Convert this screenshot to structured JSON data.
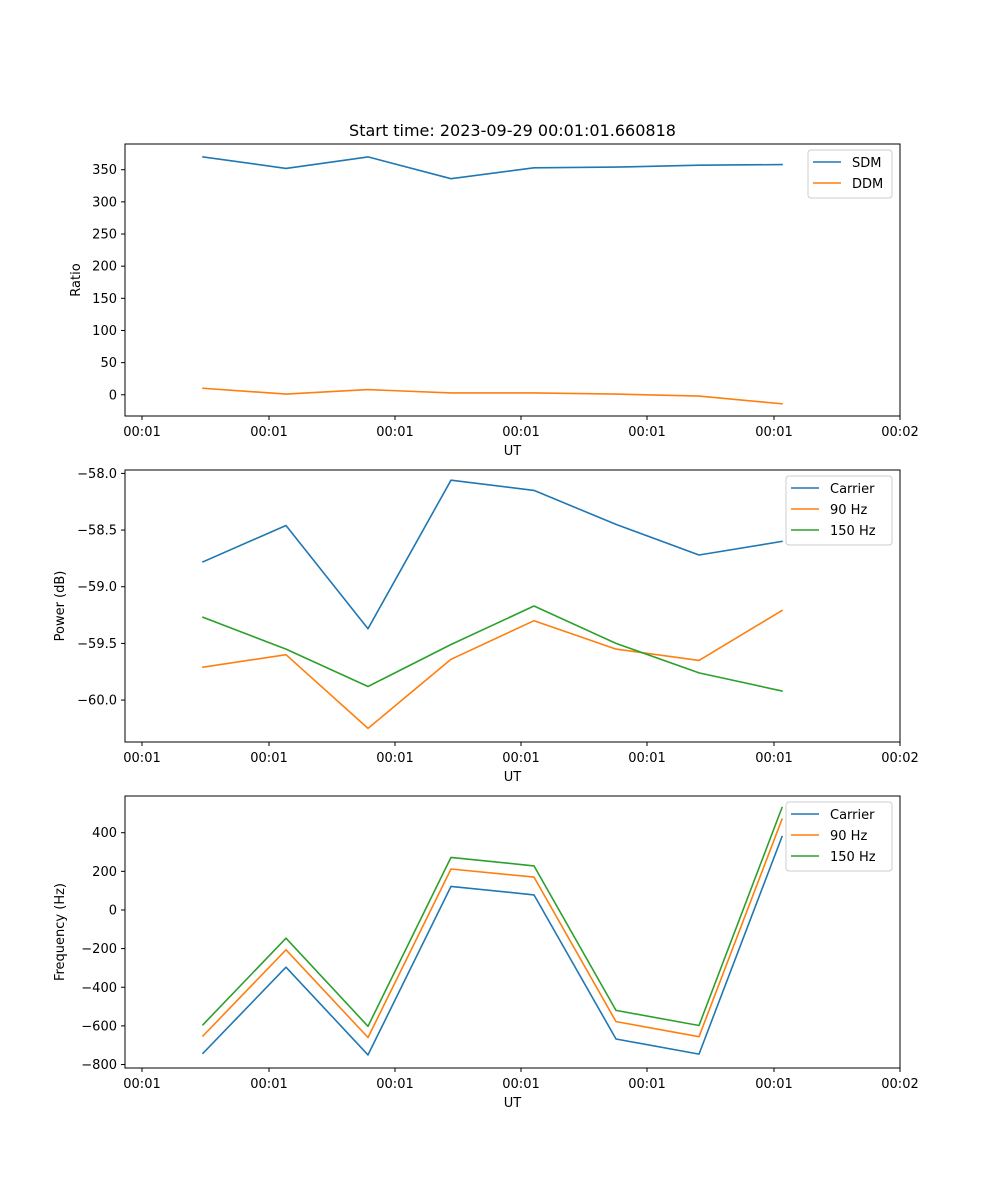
{
  "figure_title": "Start time: 2023-09-29 00:01:01.660818",
  "colors": {
    "blue": "#1f77b4",
    "orange": "#ff7f0e",
    "green": "#2ca02c"
  },
  "chart_data": [
    {
      "type": "line",
      "title": "Start time: 2023-09-29 00:01:01.660818",
      "xlabel": "UT",
      "ylabel": "Ratio",
      "xtick_labels": [
        "00:01",
        "00:01",
        "00:01",
        "00:01",
        "00:01",
        "00:01",
        "00:02"
      ],
      "yticks": [
        0,
        50,
        100,
        150,
        200,
        250,
        300,
        350
      ],
      "ylim": [
        -33,
        390
      ],
      "legend": "top-right",
      "series": [
        {
          "name": "SDM",
          "color": "#1f77b4",
          "values": [
            370,
            352,
            370,
            336,
            353,
            354,
            357,
            358
          ]
        },
        {
          "name": "DDM",
          "color": "#ff7f0e",
          "values": [
            10,
            1,
            8,
            3,
            3,
            1,
            -2,
            -14
          ]
        }
      ]
    },
    {
      "type": "line",
      "xlabel": "UT",
      "ylabel": "Power (dB)",
      "xtick_labels": [
        "00:01",
        "00:01",
        "00:01",
        "00:01",
        "00:01",
        "00:01",
        "00:02"
      ],
      "yticks": [
        -60.0,
        -59.5,
        -59.0,
        -58.5,
        -58.0
      ],
      "ytick_labels": [
        "−60.0",
        "−59.5",
        "−59.0",
        "−58.5",
        "−58.0"
      ],
      "ylim": [
        -60.37,
        -57.97
      ],
      "legend": "top-right",
      "series": [
        {
          "name": "Carrier",
          "color": "#1f77b4",
          "values": [
            -58.78,
            -58.46,
            -59.37,
            -58.06,
            -58.15,
            -58.45,
            -58.72,
            -58.6
          ]
        },
        {
          "name": "90 Hz",
          "color": "#ff7f0e",
          "values": [
            -59.71,
            -59.6,
            -60.25,
            -59.64,
            -59.3,
            -59.55,
            -59.65,
            -59.21
          ]
        },
        {
          "name": "150 Hz",
          "color": "#2ca02c",
          "values": [
            -59.27,
            -59.55,
            -59.88,
            -59.51,
            -59.17,
            -59.5,
            -59.76,
            -59.92
          ]
        }
      ]
    },
    {
      "type": "line",
      "xlabel": "UT",
      "ylabel": "Frequency (Hz)",
      "xtick_labels": [
        "00:01",
        "00:01",
        "00:01",
        "00:01",
        "00:01",
        "00:01",
        "00:02"
      ],
      "yticks": [
        -800,
        -600,
        -400,
        -200,
        0,
        200,
        400
      ],
      "ytick_labels": [
        "−800",
        "−600",
        "−400",
        "−200",
        "0",
        "200",
        "400"
      ],
      "ylim": [
        -818,
        590
      ],
      "legend": "top-right",
      "series": [
        {
          "name": "Carrier",
          "color": "#1f77b4",
          "values": [
            -742,
            -296,
            -750,
            122,
            78,
            -668,
            -746,
            380
          ]
        },
        {
          "name": "90 Hz",
          "color": "#ff7f0e",
          "values": [
            -652,
            -206,
            -660,
            212,
            170,
            -578,
            -656,
            470
          ]
        },
        {
          "name": "150 Hz",
          "color": "#2ca02c",
          "values": [
            -594,
            -146,
            -602,
            272,
            228,
            -520,
            -598,
            530
          ]
        }
      ]
    }
  ]
}
